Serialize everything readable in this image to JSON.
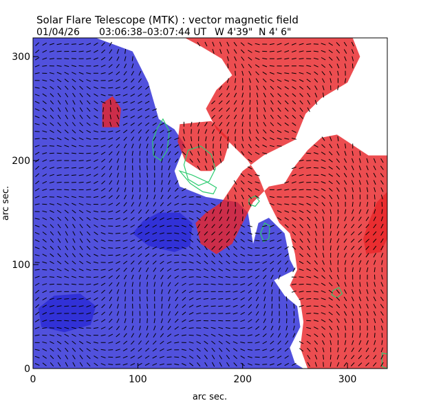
{
  "chart_data": {
    "type": "heatmap",
    "title": "Solar Flare Telescope (MTK) : vector magnetic field",
    "subtitle": {
      "date": "01/04/26",
      "time_range": "03:06:38–03:07:44 UT",
      "lon": "W 4'39\"",
      "lat": "N 4' 6\""
    },
    "xlabel": "arc sec.",
    "ylabel": "arc sec.",
    "xlim": [
      0,
      338
    ],
    "ylim": [
      0,
      318
    ],
    "x_ticks": [
      {
        "value": 0,
        "label": "0"
      },
      {
        "value": 100,
        "label": "100"
      },
      {
        "value": 200,
        "label": "200"
      },
      {
        "value": 300,
        "label": "300"
      }
    ],
    "y_ticks": [
      {
        "value": 0,
        "label": "0"
      },
      {
        "value": 100,
        "label": "100"
      },
      {
        "value": 200,
        "label": "200"
      },
      {
        "value": 300,
        "label": "300"
      }
    ],
    "colors": {
      "positive_polarity": "#e8262a",
      "negative_polarity": "#2b2bd6",
      "contour": "#2ecc71",
      "vector": "#000000"
    },
    "regions": [
      {
        "polarity": "negative",
        "points": [
          [
            0,
            318
          ],
          [
            60,
            318
          ],
          [
            95,
            305
          ],
          [
            110,
            275
          ],
          [
            120,
            240
          ],
          [
            135,
            230
          ],
          [
            145,
            215
          ],
          [
            135,
            190
          ],
          [
            140,
            175
          ],
          [
            165,
            165
          ],
          [
            195,
            160
          ],
          [
            205,
            150
          ],
          [
            210,
            120
          ],
          [
            215,
            140
          ],
          [
            225,
            145
          ],
          [
            240,
            130
          ],
          [
            245,
            105
          ],
          [
            250,
            95
          ],
          [
            230,
            85
          ],
          [
            240,
            70
          ],
          [
            252,
            60
          ],
          [
            255,
            40
          ],
          [
            245,
            20
          ],
          [
            250,
            5
          ],
          [
            258,
            0
          ],
          [
            0,
            0
          ]
        ]
      },
      {
        "polarity": "positive",
        "points": [
          [
            110,
            318
          ],
          [
            305,
            318
          ],
          [
            312,
            300
          ],
          [
            300,
            275
          ],
          [
            275,
            260
          ],
          [
            260,
            245
          ],
          [
            250,
            220
          ],
          [
            220,
            205
          ],
          [
            200,
            190
          ],
          [
            190,
            175
          ],
          [
            180,
            160
          ],
          [
            165,
            150
          ],
          [
            155,
            140
          ],
          [
            160,
            120
          ],
          [
            175,
            110
          ],
          [
            190,
            120
          ],
          [
            205,
            150
          ],
          [
            210,
            160
          ],
          [
            225,
            175
          ],
          [
            240,
            178
          ],
          [
            250,
            195
          ],
          [
            262,
            210
          ],
          [
            275,
            222
          ],
          [
            290,
            225
          ],
          [
            305,
            215
          ],
          [
            320,
            205
          ],
          [
            338,
            205
          ],
          [
            338,
            0
          ],
          [
            262,
            0
          ],
          [
            255,
            20
          ],
          [
            258,
            45
          ],
          [
            255,
            65
          ],
          [
            245,
            80
          ],
          [
            252,
            95
          ],
          [
            250,
            110
          ],
          [
            245,
            130
          ],
          [
            235,
            140
          ],
          [
            225,
            160
          ],
          [
            215,
            185
          ],
          [
            205,
            200
          ],
          [
            190,
            215
          ],
          [
            175,
            230
          ],
          [
            165,
            250
          ],
          [
            175,
            268
          ],
          [
            190,
            282
          ],
          [
            180,
            298
          ],
          [
            160,
            310
          ],
          [
            145,
            318
          ]
        ]
      },
      {
        "polarity": "positive",
        "points": [
          [
            140,
            235
          ],
          [
            170,
            238
          ],
          [
            188,
            220
          ],
          [
            182,
            200
          ],
          [
            170,
            190
          ],
          [
            160,
            190
          ],
          [
            145,
            200
          ],
          [
            138,
            218
          ]
        ]
      },
      {
        "polarity": "negative",
        "points": [
          [
            95,
            130
          ],
          [
            110,
            118
          ],
          [
            135,
            112
          ],
          [
            150,
            118
          ],
          [
            152,
            140
          ],
          [
            140,
            150
          ],
          [
            120,
            150
          ],
          [
            105,
            142
          ]
        ]
      },
      {
        "polarity": "negative",
        "points": [
          [
            8,
            40
          ],
          [
            30,
            35
          ],
          [
            55,
            42
          ],
          [
            60,
            60
          ],
          [
            45,
            72
          ],
          [
            20,
            70
          ],
          [
            5,
            58
          ]
        ]
      },
      {
        "polarity": "positive",
        "points": [
          [
            66,
            232
          ],
          [
            82,
            232
          ],
          [
            84,
            250
          ],
          [
            76,
            262
          ],
          [
            66,
            255
          ]
        ]
      },
      {
        "polarity": "positive",
        "points": [
          [
            318,
            110
          ],
          [
            332,
            112
          ],
          [
            338,
            125
          ],
          [
            338,
            170
          ],
          [
            328,
            160
          ],
          [
            320,
            140
          ],
          [
            315,
            125
          ]
        ]
      }
    ],
    "contours": [
      {
        "points": [
          [
            118,
            230
          ],
          [
            124,
            240
          ],
          [
            130,
            228
          ],
          [
            128,
            210
          ],
          [
            122,
            200
          ],
          [
            115,
            205
          ],
          [
            114,
            218
          ]
        ]
      },
      {
        "points": [
          [
            148,
            210
          ],
          [
            160,
            214
          ],
          [
            170,
            206
          ],
          [
            174,
            192
          ],
          [
            168,
            180
          ],
          [
            158,
            176
          ],
          [
            148,
            182
          ],
          [
            144,
            196
          ]
        ]
      },
      {
        "points": [
          [
            140,
            190
          ],
          [
            150,
            178
          ],
          [
            162,
            170
          ],
          [
            172,
            168
          ],
          [
            175,
            174
          ],
          [
            165,
            180
          ],
          [
            152,
            186
          ]
        ]
      },
      {
        "points": [
          [
            221,
            140
          ],
          [
            226,
            137
          ],
          [
            225,
            125
          ],
          [
            220,
            122
          ],
          [
            217,
            130
          ]
        ]
      },
      {
        "points": [
          [
            206,
            163
          ],
          [
            212,
            166
          ],
          [
            216,
            161
          ],
          [
            212,
            156
          ],
          [
            206,
            158
          ]
        ]
      },
      {
        "points": [
          [
            286,
            75
          ],
          [
            292,
            78
          ],
          [
            295,
            72
          ],
          [
            290,
            68
          ],
          [
            285,
            71
          ]
        ]
      },
      {
        "points": [
          [
            333,
            15
          ],
          [
            338,
            14
          ],
          [
            338,
            0
          ],
          [
            333,
            2
          ]
        ]
      }
    ]
  }
}
